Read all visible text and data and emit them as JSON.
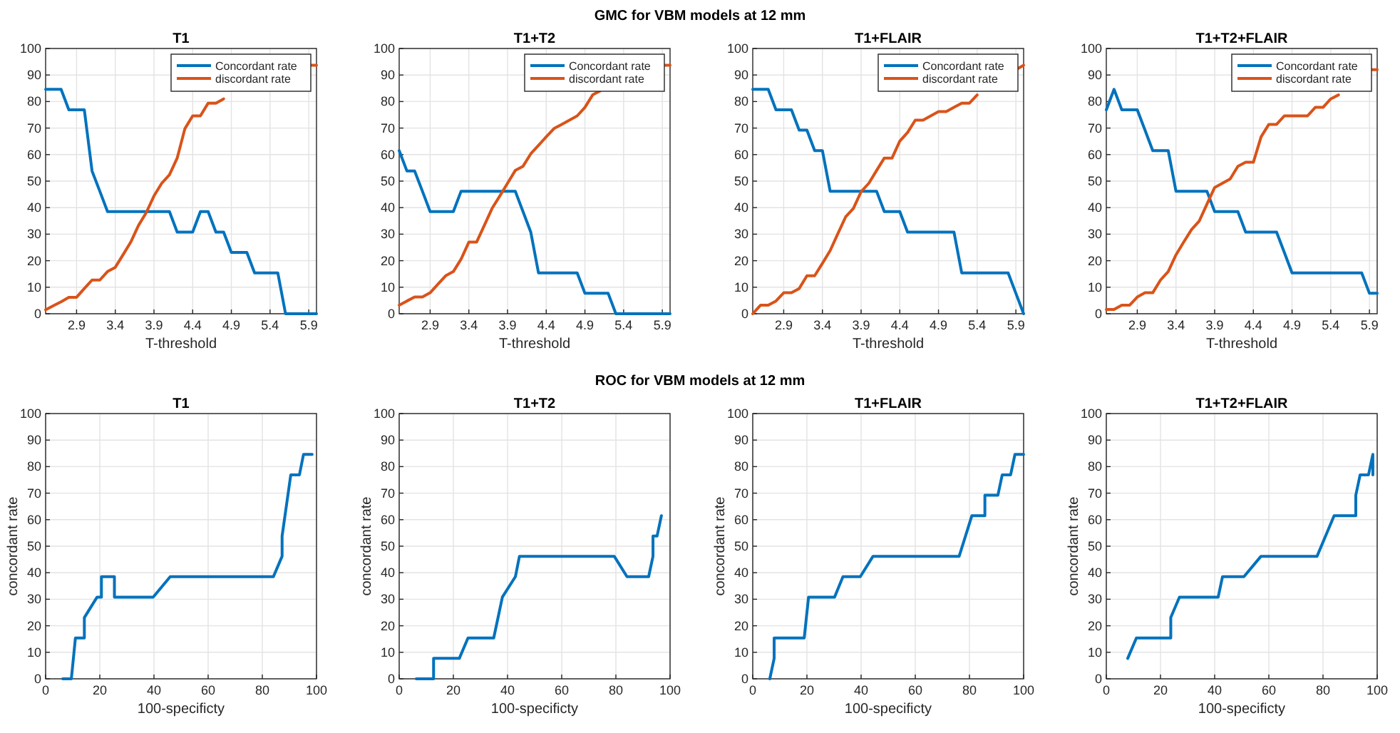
{
  "chart_data": [
    {
      "type": "line",
      "annotations": [
        "GMC for VBM models at 12 mm"
      ],
      "title": "T1",
      "xlabel": "T-threshold",
      "x": [
        2.5,
        2.6,
        2.7,
        2.8,
        2.9,
        3.0,
        3.1,
        3.2,
        3.3,
        3.4,
        3.5,
        3.6,
        3.7,
        3.8,
        3.9,
        4.0,
        4.1,
        4.2,
        4.3,
        4.4,
        4.5,
        4.6,
        4.7,
        4.8,
        4.9,
        5.0,
        5.1,
        5.2,
        5.3,
        5.4,
        5.5,
        5.6,
        5.7,
        5.8,
        5.9,
        6.0
      ],
      "xlim": [
        2.5,
        6.0
      ],
      "xticks": [
        2.9,
        3.4,
        3.9,
        4.4,
        4.9,
        5.4,
        5.9
      ],
      "ylim": [
        0,
        100
      ],
      "yticks": [
        0,
        10,
        20,
        30,
        40,
        50,
        60,
        70,
        80,
        90,
        100
      ],
      "grid": true,
      "legend": "top right",
      "series": [
        {
          "name": "Concordant rate",
          "color": "#0072bd",
          "values": [
            84.6,
            84.6,
            84.6,
            76.9,
            76.9,
            76.9,
            53.8,
            46.2,
            38.5,
            38.5,
            38.5,
            38.5,
            38.5,
            38.5,
            38.5,
            38.5,
            38.5,
            30.8,
            30.8,
            30.8,
            38.5,
            38.5,
            30.8,
            30.8,
            23.1,
            23.1,
            23.1,
            15.4,
            15.4,
            15.4,
            15.4,
            0,
            0,
            0,
            0,
            0
          ]
        },
        {
          "name": "discordant rate",
          "color": "#d95319",
          "values": [
            1.5,
            3,
            4.5,
            6.2,
            6.2,
            9.5,
            12.7,
            12.7,
            15.9,
            17.5,
            22.2,
            27,
            33.3,
            38.1,
            44.4,
            49.2,
            52.4,
            58.7,
            69.8,
            74.6,
            74.6,
            79.4,
            79.4,
            81,
            null,
            null,
            null,
            null,
            null,
            null,
            null,
            null,
            null,
            null,
            93.7,
            93.7
          ]
        }
      ]
    },
    {
      "type": "line",
      "title": "T1+T2",
      "xlabel": "T-threshold",
      "x": [
        2.5,
        2.6,
        2.7,
        2.8,
        2.9,
        3.0,
        3.1,
        3.2,
        3.3,
        3.4,
        3.5,
        3.6,
        3.7,
        3.8,
        3.9,
        4.0,
        4.1,
        4.2,
        4.3,
        4.4,
        4.5,
        4.6,
        4.7,
        4.8,
        4.9,
        5.0,
        5.1,
        5.2,
        5.3,
        5.4,
        5.5,
        5.6,
        5.7,
        5.8,
        5.9,
        6.0
      ],
      "xlim": [
        2.5,
        6.0
      ],
      "xticks": [
        2.9,
        3.4,
        3.9,
        4.4,
        4.9,
        5.4,
        5.9
      ],
      "ylim": [
        0,
        100
      ],
      "yticks": [
        0,
        10,
        20,
        30,
        40,
        50,
        60,
        70,
        80,
        90,
        100
      ],
      "grid": true,
      "legend": "top right",
      "series": [
        {
          "name": "Concordant rate",
          "color": "#0072bd",
          "values": [
            61.5,
            53.8,
            53.8,
            46.2,
            38.5,
            38.5,
            38.5,
            38.5,
            46.2,
            46.2,
            46.2,
            46.2,
            46.2,
            46.2,
            46.2,
            46.2,
            38.5,
            30.8,
            15.4,
            15.4,
            15.4,
            15.4,
            15.4,
            15.4,
            7.7,
            7.7,
            7.7,
            7.7,
            0,
            0,
            0,
            0,
            0,
            0,
            0,
            0
          ]
        },
        {
          "name": "discordant rate",
          "color": "#d95319",
          "values": [
            3.2,
            4.8,
            6.3,
            6.3,
            7.9,
            11.1,
            14.3,
            15.9,
            20.6,
            27,
            27,
            33.3,
            39.7,
            44.4,
            49.2,
            54,
            55.6,
            60.3,
            63.5,
            66.7,
            69.8,
            71.4,
            73,
            74.6,
            77.8,
            82.5,
            84.1,
            null,
            null,
            null,
            null,
            null,
            null,
            null,
            93.7,
            93.7
          ]
        }
      ]
    },
    {
      "type": "line",
      "title": "T1+FLAIR",
      "xlabel": "T-threshold",
      "x": [
        2.5,
        2.6,
        2.7,
        2.8,
        2.9,
        3.0,
        3.1,
        3.2,
        3.3,
        3.4,
        3.5,
        3.6,
        3.7,
        3.8,
        3.9,
        4.0,
        4.1,
        4.2,
        4.3,
        4.4,
        4.5,
        4.6,
        4.7,
        4.8,
        4.9,
        5.0,
        5.1,
        5.2,
        5.3,
        5.4,
        5.5,
        5.6,
        5.7,
        5.8,
        5.9,
        6.0
      ],
      "xlim": [
        2.5,
        6.0
      ],
      "xticks": [
        2.9,
        3.4,
        3.9,
        4.4,
        4.9,
        5.4,
        5.9
      ],
      "ylim": [
        0,
        100
      ],
      "yticks": [
        0,
        10,
        20,
        30,
        40,
        50,
        60,
        70,
        80,
        90,
        100
      ],
      "grid": true,
      "legend": "top right",
      "series": [
        {
          "name": "Concordant rate",
          "color": "#0072bd",
          "values": [
            84.6,
            84.6,
            84.6,
            76.9,
            76.9,
            76.9,
            69.2,
            69.2,
            61.5,
            61.5,
            46.2,
            46.2,
            46.2,
            46.2,
            46.2,
            46.2,
            46.2,
            38.5,
            38.5,
            38.5,
            30.8,
            30.8,
            30.8,
            30.8,
            30.8,
            30.8,
            30.8,
            15.4,
            15.4,
            15.4,
            15.4,
            15.4,
            15.4,
            15.4,
            7.7,
            0
          ]
        },
        {
          "name": "discordant rate",
          "color": "#d95319",
          "values": [
            0,
            3.2,
            3.2,
            4.8,
            7.9,
            7.9,
            9.5,
            14.3,
            14.3,
            19,
            23.8,
            30.2,
            36.5,
            39.7,
            46,
            49.2,
            54,
            58.7,
            58.7,
            65.1,
            68.3,
            73,
            73,
            74.6,
            76.2,
            76.2,
            77.8,
            79.4,
            79.4,
            82.5,
            null,
            null,
            null,
            null,
            92,
            93.7
          ]
        }
      ]
    },
    {
      "type": "line",
      "title": "T1+T2+FLAIR",
      "xlabel": "T-threshold",
      "x": [
        2.5,
        2.6,
        2.7,
        2.8,
        2.9,
        3.0,
        3.1,
        3.2,
        3.3,
        3.4,
        3.5,
        3.6,
        3.7,
        3.8,
        3.9,
        4.0,
        4.1,
        4.2,
        4.3,
        4.4,
        4.5,
        4.6,
        4.7,
        4.8,
        4.9,
        5.0,
        5.1,
        5.2,
        5.3,
        5.4,
        5.5,
        5.6,
        5.7,
        5.8,
        5.9,
        6.0
      ],
      "xlim": [
        2.5,
        6.0
      ],
      "xticks": [
        2.9,
        3.4,
        3.9,
        4.4,
        4.9,
        5.4,
        5.9
      ],
      "ylim": [
        0,
        100
      ],
      "yticks": [
        0,
        10,
        20,
        30,
        40,
        50,
        60,
        70,
        80,
        90,
        100
      ],
      "grid": true,
      "legend": "top right",
      "series": [
        {
          "name": "Concordant rate",
          "color": "#0072bd",
          "values": [
            76.9,
            84.6,
            76.9,
            76.9,
            76.9,
            69.2,
            61.5,
            61.5,
            61.5,
            46.2,
            46.2,
            46.2,
            46.2,
            46.2,
            38.5,
            38.5,
            38.5,
            38.5,
            30.8,
            30.8,
            30.8,
            30.8,
            30.8,
            23.1,
            15.4,
            15.4,
            15.4,
            15.4,
            15.4,
            15.4,
            15.4,
            15.4,
            15.4,
            15.4,
            7.7,
            7.7
          ]
        },
        {
          "name": "discordant rate",
          "color": "#d95319",
          "values": [
            1.6,
            1.6,
            3.2,
            3.2,
            6.3,
            7.9,
            7.9,
            12.7,
            15.9,
            22.2,
            27,
            31.7,
            34.9,
            41.3,
            47.6,
            49.2,
            50.8,
            55.6,
            57.1,
            57.1,
            66.7,
            71.4,
            71.4,
            74.6,
            74.6,
            74.6,
            74.6,
            77.8,
            77.8,
            81,
            82.5,
            null,
            null,
            null,
            92,
            92
          ]
        }
      ]
    },
    {
      "type": "line",
      "annotations": [
        "ROC for VBM models at 12 mm"
      ],
      "title": "T1",
      "xlabel": "100-specificty",
      "ylabel": "concordant rate",
      "xlim": [
        0,
        100
      ],
      "xticks": [
        0,
        20,
        40,
        60,
        80,
        100
      ],
      "ylim": [
        0,
        100
      ],
      "yticks": [
        0,
        10,
        20,
        30,
        40,
        50,
        60,
        70,
        80,
        90,
        100
      ],
      "grid": true,
      "series": [
        {
          "color": "#0072bd",
          "x": [
            6.3,
            9.5,
            11,
            14.3,
            14.3,
            19,
            20.6,
            20.6,
            25.4,
            25.4,
            39.7,
            46,
            84.1,
            87.3,
            87.3,
            90.5,
            93.7,
            95.2,
            98.4
          ],
          "values": [
            0,
            0,
            15.4,
            15.4,
            23.1,
            30.8,
            30.8,
            38.5,
            38.5,
            30.8,
            30.8,
            38.5,
            38.5,
            46.2,
            53.8,
            76.9,
            76.9,
            84.6,
            84.6
          ]
        }
      ]
    },
    {
      "type": "line",
      "title": "T1+T2",
      "xlabel": "100-specificty",
      "ylabel": "concordant rate",
      "xlim": [
        0,
        100
      ],
      "xticks": [
        0,
        20,
        40,
        60,
        80,
        100
      ],
      "ylim": [
        0,
        100
      ],
      "yticks": [
        0,
        10,
        20,
        30,
        40,
        50,
        60,
        70,
        80,
        90,
        100
      ],
      "grid": true,
      "series": [
        {
          "color": "#0072bd",
          "x": [
            6.3,
            12.7,
            12.7,
            22.2,
            25.4,
            34.9,
            38.1,
            42.9,
            44.4,
            79.4,
            84.1,
            92.1,
            93.7,
            93.7,
            95.2,
            96.8
          ],
          "values": [
            0,
            0,
            7.7,
            7.7,
            15.4,
            15.4,
            30.8,
            38.5,
            46.2,
            46.2,
            38.5,
            38.5,
            46.2,
            53.8,
            53.8,
            61.5
          ]
        }
      ]
    },
    {
      "type": "line",
      "title": "T1+FLAIR",
      "xlabel": "100-specificty",
      "ylabel": "concordant rate",
      "xlim": [
        0,
        100
      ],
      "xticks": [
        0,
        20,
        40,
        60,
        80,
        100
      ],
      "ylim": [
        0,
        100
      ],
      "yticks": [
        0,
        10,
        20,
        30,
        40,
        50,
        60,
        70,
        80,
        90,
        100
      ],
      "grid": true,
      "series": [
        {
          "color": "#0072bd",
          "x": [
            6.3,
            7.9,
            7.9,
            19,
            20.6,
            30.2,
            33.3,
            39.7,
            44.4,
            76.2,
            80.9,
            85.7,
            85.7,
            90.5,
            92.1,
            95.2,
            96.8,
            100
          ],
          "values": [
            0,
            7.7,
            15.4,
            15.4,
            30.8,
            30.8,
            38.5,
            38.5,
            46.2,
            46.2,
            61.5,
            61.5,
            69.2,
            69.2,
            76.9,
            76.9,
            84.6,
            84.6
          ]
        }
      ]
    },
    {
      "type": "line",
      "title": "T1+T2+FLAIR",
      "xlabel": "100-specificty",
      "ylabel": "concordant rate",
      "xlim": [
        0,
        100
      ],
      "xticks": [
        0,
        20,
        40,
        60,
        80,
        100
      ],
      "ylim": [
        0,
        100
      ],
      "yticks": [
        0,
        10,
        20,
        30,
        40,
        50,
        60,
        70,
        80,
        90,
        100
      ],
      "grid": true,
      "series": [
        {
          "color": "#0072bd",
          "x": [
            7.9,
            11.1,
            23.8,
            23.8,
            27,
            41.3,
            42.9,
            50.8,
            57.1,
            77.8,
            84.1,
            92.1,
            92.1,
            93.7,
            96.8,
            98.4,
            98.4
          ],
          "values": [
            7.7,
            15.4,
            15.4,
            23.1,
            30.8,
            30.8,
            38.5,
            38.5,
            46.2,
            46.2,
            61.5,
            61.5,
            69.2,
            76.9,
            76.9,
            84.6,
            76.9
          ]
        }
      ]
    }
  ]
}
